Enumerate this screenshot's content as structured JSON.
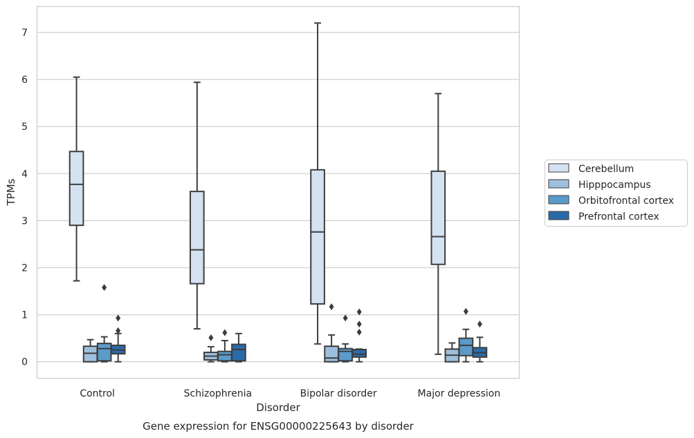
{
  "chart_data": {
    "type": "box",
    "title": "",
    "caption": "Gene expression for ENSG00000225643 by disorder",
    "xlabel": "Disorder",
    "ylabel": "TPMs",
    "ylim": [
      -0.35,
      7.55
    ],
    "yticks": [
      0,
      1,
      2,
      3,
      4,
      5,
      6,
      7
    ],
    "grid": "horizontal",
    "legend_position": "right",
    "categories": [
      "Control",
      "Schizophrenia",
      "Bipolar disorder",
      "Major depression"
    ],
    "series": [
      {
        "name": "Cerebellum",
        "color": "#d4e2f1",
        "boxes": [
          {
            "whislo": 1.72,
            "q1": 2.9,
            "med": 3.77,
            "q3": 4.47,
            "whishi": 6.05,
            "fliers": []
          },
          {
            "whislo": 0.7,
            "q1": 1.66,
            "med": 2.38,
            "q3": 3.62,
            "whishi": 5.94,
            "fliers": []
          },
          {
            "whislo": 0.38,
            "q1": 1.23,
            "med": 2.76,
            "q3": 4.08,
            "whishi": 7.2,
            "fliers": []
          },
          {
            "whislo": 0.16,
            "q1": 2.07,
            "med": 2.66,
            "q3": 4.05,
            "whishi": 5.7,
            "fliers": []
          }
        ]
      },
      {
        "name": "Hipppocampus",
        "color": "#9ebfdc",
        "boxes": [
          {
            "whislo": 0.0,
            "q1": 0.0,
            "med": 0.18,
            "q3": 0.33,
            "whishi": 0.47,
            "fliers": []
          },
          {
            "whislo": 0.0,
            "q1": 0.04,
            "med": 0.12,
            "q3": 0.2,
            "whishi": 0.32,
            "fliers": [
              0.51
            ]
          },
          {
            "whislo": 0.0,
            "q1": 0.0,
            "med": 0.08,
            "q3": 0.33,
            "whishi": 0.57,
            "fliers": [
              1.17
            ]
          },
          {
            "whislo": 0.0,
            "q1": 0.0,
            "med": 0.14,
            "q3": 0.27,
            "whishi": 0.4,
            "fliers": []
          }
        ]
      },
      {
        "name": "Orbitofrontal cortex",
        "color": "#5a9bc9",
        "boxes": [
          {
            "whislo": 0.0,
            "q1": 0.02,
            "med": 0.28,
            "q3": 0.39,
            "whishi": 0.53,
            "fliers": [
              1.58
            ]
          },
          {
            "whislo": 0.0,
            "q1": 0.02,
            "med": 0.15,
            "q3": 0.22,
            "whishi": 0.45,
            "fliers": [
              0.62
            ]
          },
          {
            "whislo": 0.0,
            "q1": 0.02,
            "med": 0.22,
            "q3": 0.28,
            "whishi": 0.38,
            "fliers": [
              0.93
            ]
          },
          {
            "whislo": 0.0,
            "q1": 0.13,
            "med": 0.35,
            "q3": 0.5,
            "whishi": 0.69,
            "fliers": [
              1.07
            ]
          }
        ]
      },
      {
        "name": "Prefrontal cortex",
        "color": "#2b6aa8",
        "boxes": [
          {
            "whislo": 0.0,
            "q1": 0.17,
            "med": 0.25,
            "q3": 0.35,
            "whishi": 0.6,
            "fliers": [
              0.66,
              0.93
            ]
          },
          {
            "whislo": 0.0,
            "q1": 0.02,
            "med": 0.26,
            "q3": 0.37,
            "whishi": 0.6,
            "fliers": []
          },
          {
            "whislo": 0.0,
            "q1": 0.1,
            "med": 0.16,
            "q3": 0.26,
            "whishi": 0.27,
            "fliers": [
              0.63,
              0.8,
              1.06
            ]
          },
          {
            "whislo": 0.0,
            "q1": 0.1,
            "med": 0.19,
            "q3": 0.3,
            "whishi": 0.52,
            "fliers": [
              0.8
            ]
          }
        ]
      }
    ]
  }
}
